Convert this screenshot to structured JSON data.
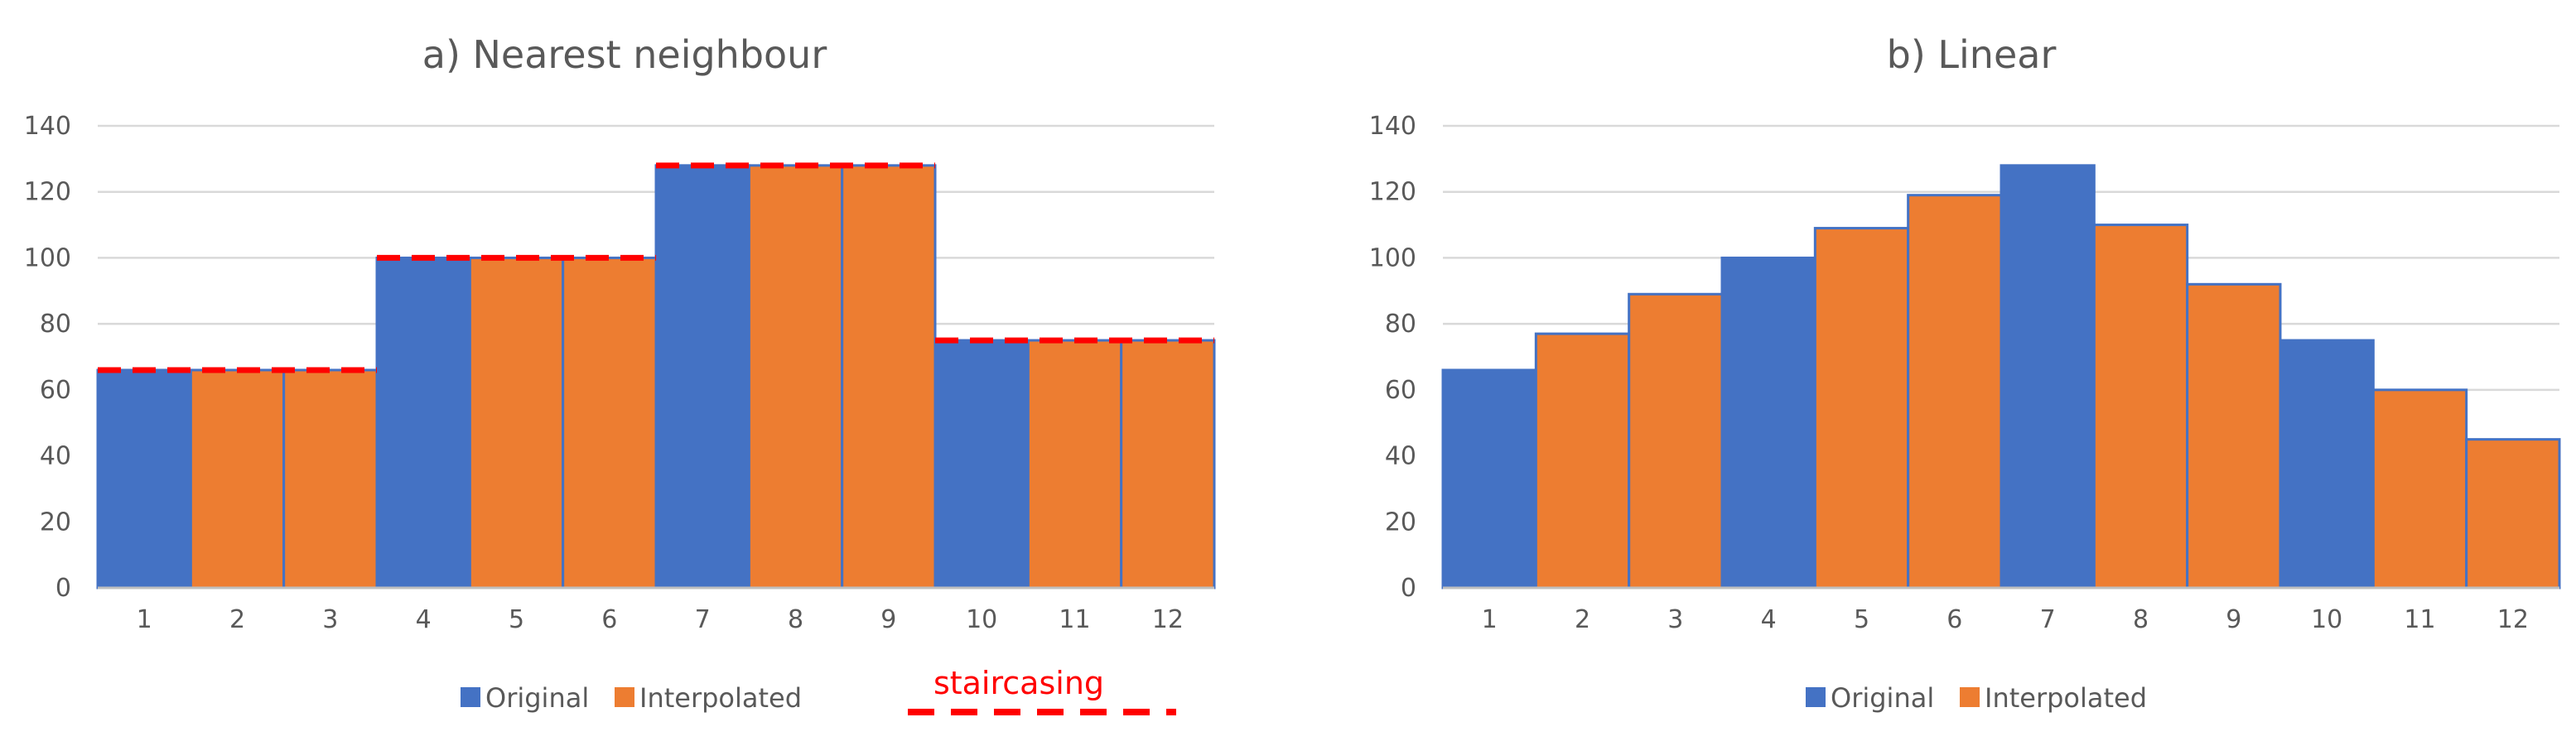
{
  "colors": {
    "original": "#4472c4",
    "interpolated": "#ed7d31",
    "staircasing": "#ff0000",
    "grid": "#d9d9d9",
    "axis": "#bfbfbf",
    "text": "#595959"
  },
  "chart_data": [
    {
      "type": "bar",
      "title": "a) Nearest neighbour",
      "xlabel": "",
      "ylabel": "",
      "categories": [
        "1",
        "2",
        "3",
        "4",
        "5",
        "6",
        "7",
        "8",
        "9",
        "10",
        "11",
        "12"
      ],
      "values": [
        66,
        66,
        66,
        100,
        100,
        100,
        128,
        128,
        128,
        75,
        75,
        75
      ],
      "kinds": [
        "Original",
        "Interpolated",
        "Interpolated",
        "Original",
        "Interpolated",
        "Interpolated",
        "Original",
        "Interpolated",
        "Interpolated",
        "Original",
        "Interpolated",
        "Interpolated"
      ],
      "ylim": [
        0,
        140
      ],
      "yticks": [
        0,
        20,
        40,
        60,
        80,
        100,
        120,
        140
      ],
      "grid": true,
      "legend": [
        "Original",
        "Interpolated"
      ],
      "legend_position": "bottom",
      "annotation": {
        "label": "staircasing",
        "style": "dashed line over bar tops"
      }
    },
    {
      "type": "bar",
      "title": "b) Linear",
      "xlabel": "",
      "ylabel": "",
      "categories": [
        "1",
        "2",
        "3",
        "4",
        "5",
        "6",
        "7",
        "8",
        "9",
        "10",
        "11",
        "12"
      ],
      "values": [
        66,
        77,
        89,
        100,
        109,
        119,
        128,
        110,
        92,
        75,
        60,
        45
      ],
      "kinds": [
        "Original",
        "Interpolated",
        "Interpolated",
        "Original",
        "Interpolated",
        "Interpolated",
        "Original",
        "Interpolated",
        "Interpolated",
        "Original",
        "Interpolated",
        "Interpolated"
      ],
      "ylim": [
        0,
        140
      ],
      "yticks": [
        0,
        20,
        40,
        60,
        80,
        100,
        120,
        140
      ],
      "grid": true,
      "legend": [
        "Original",
        "Interpolated"
      ],
      "legend_position": "bottom"
    }
  ]
}
